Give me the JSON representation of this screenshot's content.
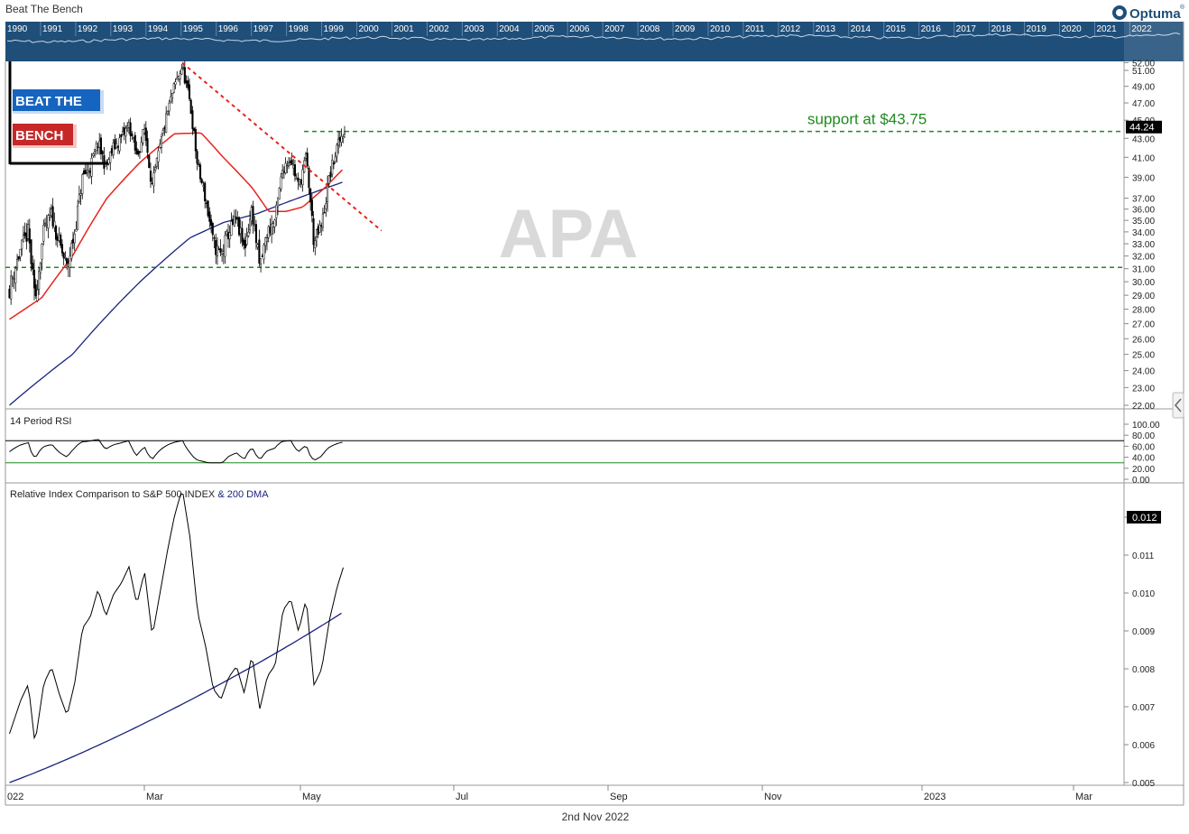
{
  "header": {
    "title": "Beat The Bench",
    "brand": "Optuma",
    "brand_mark": "®",
    "timeline_years": [
      "1990",
      "1991",
      "1992",
      "1993",
      "1994",
      "1995",
      "1996",
      "1997",
      "1998",
      "1999",
      "2000",
      "2001",
      "2002",
      "2003",
      "2004",
      "2005",
      "2006",
      "2007",
      "2008",
      "2009",
      "2010",
      "2011",
      "2012",
      "2013",
      "2014",
      "2015",
      "2016",
      "2017",
      "2018",
      "2019",
      "2020",
      "2021",
      "2022"
    ]
  },
  "logo": {
    "line1": "BEAT THE",
    "line2": "BENCH"
  },
  "watermark": "APA",
  "footer": {
    "date": "2nd Nov 2022"
  },
  "colors": {
    "navy_bar": "#1f4e79",
    "sma50": "#e8231e",
    "sma200": "#1a237e",
    "support": "#1e8a1e",
    "trendline": "#e8231e",
    "logo_blue": "#1565c0",
    "logo_red": "#c62828"
  },
  "chart_data": [
    {
      "type": "candlestick",
      "panel": "price",
      "ticker": "APA",
      "ylim": [
        22,
        52.5
      ],
      "y_ticks": [
        "22.00",
        "23.00",
        "24.00",
        "25.00",
        "26.00",
        "27.00",
        "28.00",
        "29.00",
        "30.00",
        "31.00",
        "32.00",
        "33.00",
        "34.00",
        "35.00",
        "36.00",
        "37.00",
        "39.00",
        "41.00",
        "43.00",
        "45.00",
        "47.00",
        "49.00",
        "51.00",
        "52.00"
      ],
      "last_price": "44.24",
      "annotation": "support at $43.75",
      "support_levels": [
        43.75,
        31.1
      ],
      "trendline": {
        "from": [
          "2022-06-08",
          52.0
        ],
        "to": [
          "2022-12-05",
          34.1
        ]
      },
      "x_labels": [
        "022",
        "Mar",
        "May",
        "Jul",
        "Sep",
        "Nov",
        "2023",
        "Mar"
      ],
      "closes_approx": [
        [
          "2022-01-03",
          29.5
        ],
        [
          "2022-01-13",
          32.5
        ],
        [
          "2022-01-20",
          34
        ],
        [
          "2022-01-26",
          28.5
        ],
        [
          "2022-02-03",
          34
        ],
        [
          "2022-02-10",
          35.5
        ],
        [
          "2022-02-17",
          33
        ],
        [
          "2022-02-24",
          31
        ],
        [
          "2022-03-03",
          34
        ],
        [
          "2022-03-10",
          39
        ],
        [
          "2022-03-17",
          40
        ],
        [
          "2022-03-24",
          42.5
        ],
        [
          "2022-03-31",
          40
        ],
        [
          "2022-04-07",
          42
        ],
        [
          "2022-04-14",
          43
        ],
        [
          "2022-04-21",
          44.5
        ],
        [
          "2022-04-28",
          41
        ],
        [
          "2022-05-05",
          44
        ],
        [
          "2022-05-12",
          38
        ],
        [
          "2022-05-19",
          42
        ],
        [
          "2022-05-26",
          46
        ],
        [
          "2022-06-01",
          49
        ],
        [
          "2022-06-08",
          51.5
        ],
        [
          "2022-06-15",
          47
        ],
        [
          "2022-06-22",
          40
        ],
        [
          "2022-06-29",
          37
        ],
        [
          "2022-07-06",
          33
        ],
        [
          "2022-07-13",
          32
        ],
        [
          "2022-07-20",
          34
        ],
        [
          "2022-07-27",
          35
        ],
        [
          "2022-08-03",
          32.5
        ],
        [
          "2022-08-10",
          36
        ],
        [
          "2022-08-17",
          31
        ],
        [
          "2022-08-24",
          34
        ],
        [
          "2022-08-31",
          35
        ],
        [
          "2022-09-07",
          40
        ],
        [
          "2022-09-14",
          41
        ],
        [
          "2022-09-21",
          38
        ],
        [
          "2022-09-28",
          41
        ],
        [
          "2022-10-05",
          33
        ],
        [
          "2022-10-12",
          34.5
        ],
        [
          "2022-10-19",
          39
        ],
        [
          "2022-10-26",
          42
        ],
        [
          "2022-11-02",
          44.24
        ]
      ],
      "sma50_approx": [
        [
          "2022-01-03",
          27.3
        ],
        [
          "2022-02-01",
          28.8
        ],
        [
          "2022-03-01",
          32
        ],
        [
          "2022-04-01",
          37
        ],
        [
          "2022-05-01",
          40.5
        ],
        [
          "2022-06-01",
          43.5
        ],
        [
          "2022-06-25",
          43.6
        ],
        [
          "2022-07-15",
          41
        ],
        [
          "2022-08-10",
          38
        ],
        [
          "2022-08-25",
          35.8
        ],
        [
          "2022-09-10",
          35.8
        ],
        [
          "2022-09-25",
          36.2
        ],
        [
          "2022-10-15",
          38
        ],
        [
          "2022-11-02",
          40
        ]
      ],
      "sma200_approx": [
        [
          "2022-01-03",
          22
        ],
        [
          "2022-03-01",
          25
        ],
        [
          "2022-05-01",
          30
        ],
        [
          "2022-06-15",
          33.5
        ],
        [
          "2022-07-15",
          34.8
        ],
        [
          "2022-08-15",
          35.6
        ],
        [
          "2022-09-15",
          36.8
        ],
        [
          "2022-11-02",
          38.6
        ]
      ]
    },
    {
      "type": "line",
      "panel": "rsi",
      "title": "14 Period RSI",
      "ylim": [
        0,
        100
      ],
      "y_ticks": [
        "100.00",
        "80.00",
        "60.00",
        "40.00",
        "20.00",
        "0.00"
      ],
      "levels": [
        70,
        30
      ]
    },
    {
      "type": "line",
      "panel": "relative",
      "title": "Relative Index Comparison to S&P 500 INDEX",
      "title_suffix": "& 200 DMA",
      "ylim": [
        0.005,
        0.0123
      ],
      "y_ticks": [
        "0.012",
        "0.011",
        "0.010",
        "0.009",
        "0.008",
        "0.007",
        "0.006",
        "0.005"
      ],
      "last_value": "0.012"
    }
  ]
}
